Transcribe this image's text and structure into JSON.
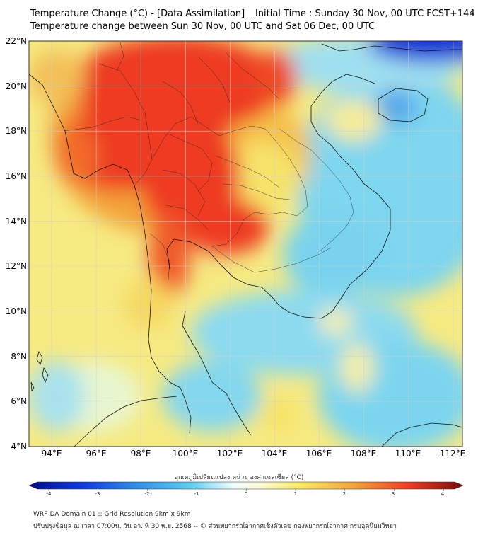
{
  "title_line1": "Temperature Change (°C) - [Data Assimilation] _ Initial Time : Sunday 30 Nov, 00 UTC FCST+144",
  "title_line2": "Temperature change between Sun 30 Nov, 00 UTC and Sat 06 Dec, 00 UTC",
  "lat_labels": [
    "22°N",
    "20°N",
    "18°N",
    "16°N",
    "14°N",
    "12°N",
    "10°N",
    "8°N",
    "6°N",
    "4°N"
  ],
  "lon_labels": [
    "94°E",
    "96°E",
    "98°E",
    "100°E",
    "102°E",
    "104°E",
    "106°E",
    "108°E",
    "110°E",
    "112°E"
  ],
  "colorbar": {
    "title": "อุณหภูมิเปลี่ยนแปลง หน่วย องศาเซลเซียส (°C)",
    "ticks": [
      "-4",
      "-3",
      "-2",
      "-1",
      "0",
      "1",
      "2",
      "3",
      "4"
    ]
  },
  "footer_line1": "WRF-DA Domain 01 :: Grid Resolution 9km x 9km",
  "footer_line2": "ปรับปรุงข้อมูล ณ เวลา 07:00น. วัน อา. ที่ 30 พ.ย. 2568 -- © ส่วนพยากรณ์อากาศเชิงตัวเลข กองพยากรณ์อากาศ กรมอุตุนิยมวิทยา",
  "colors": {
    "deep_blue": "#0a1fc8",
    "light_blue": "#5fd0f0",
    "white": "#f4fbf6",
    "yellow": "#f8e860",
    "orange": "#f3a33a",
    "red": "#ee3a22",
    "dark_red": "#8a1010"
  }
}
